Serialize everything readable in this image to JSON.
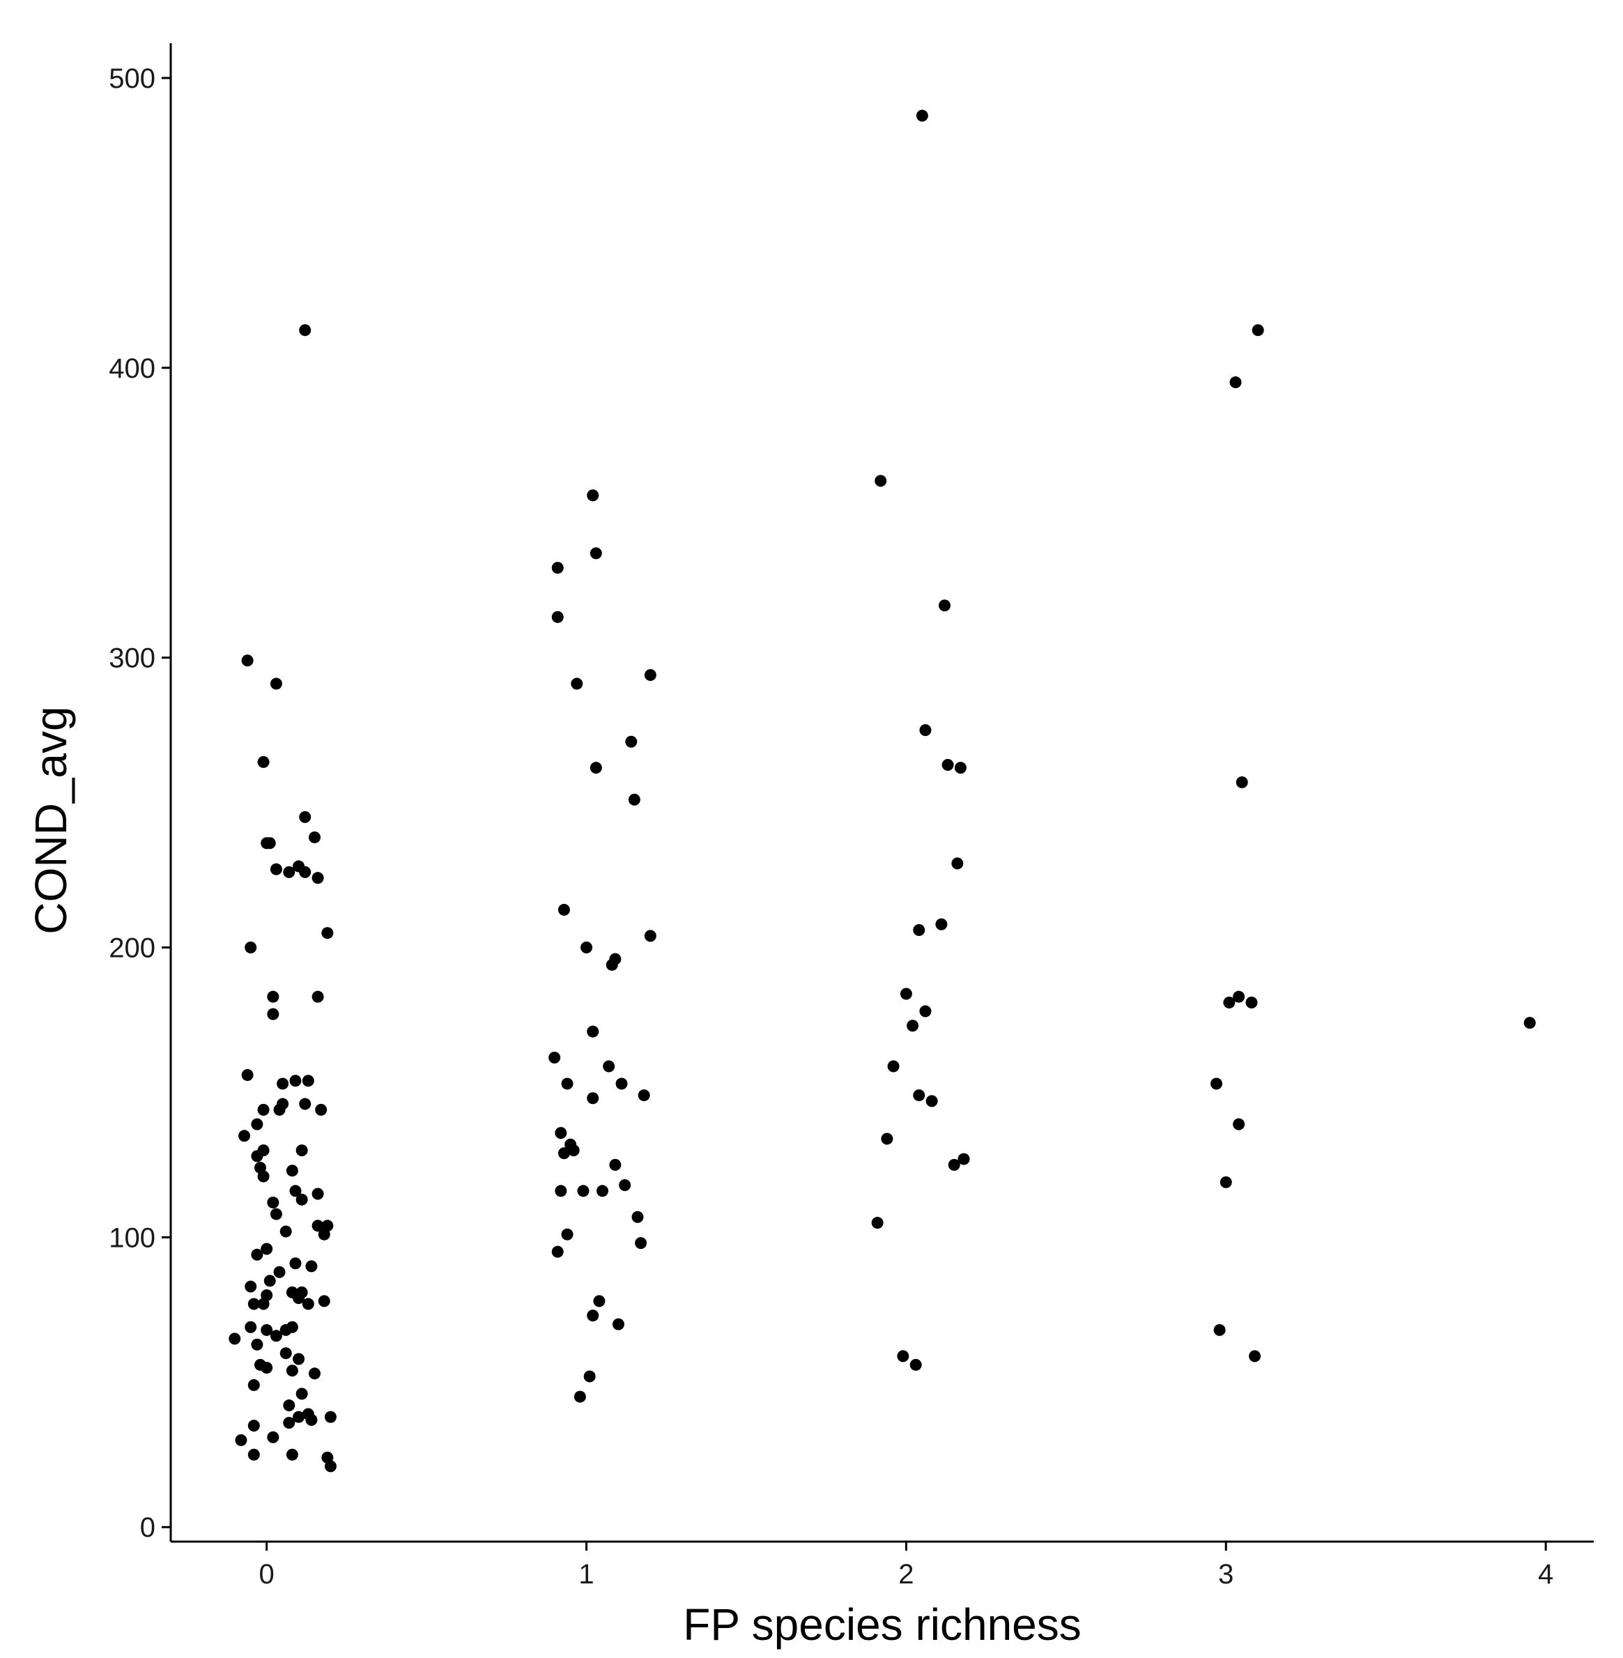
{
  "chart_data": {
    "type": "scatter",
    "title": "",
    "xlabel": "FP species richness",
    "ylabel": "COND_avg",
    "xlim": [
      -0.3,
      4.15
    ],
    "ylim": [
      -5,
      512
    ],
    "xticks": [
      0,
      1,
      2,
      3,
      4
    ],
    "yticks": [
      0,
      100,
      200,
      300,
      400,
      500
    ],
    "xtick_labels": [
      "0",
      "1",
      "2",
      "3",
      "4"
    ],
    "ytick_labels": [
      "0",
      "100",
      "200",
      "300",
      "400",
      "500"
    ],
    "grid": false,
    "legend": "none",
    "colors": {
      "point": "#000000",
      "axis": "#000000"
    },
    "series": [
      {
        "points": [
          [
            -0.1,
            65
          ],
          [
            -0.08,
            30
          ],
          [
            -0.07,
            135
          ],
          [
            -0.06,
            299
          ],
          [
            -0.06,
            156
          ],
          [
            -0.05,
            83
          ],
          [
            -0.05,
            69
          ],
          [
            -0.05,
            200
          ],
          [
            -0.04,
            77
          ],
          [
            -0.04,
            49
          ],
          [
            -0.04,
            35
          ],
          [
            -0.04,
            25
          ],
          [
            -0.03,
            128
          ],
          [
            -0.03,
            94
          ],
          [
            -0.03,
            63
          ],
          [
            -0.03,
            139
          ],
          [
            -0.02,
            124
          ],
          [
            -0.02,
            56
          ],
          [
            -0.01,
            264
          ],
          [
            -0.01,
            130
          ],
          [
            -0.01,
            144
          ],
          [
            -0.01,
            121
          ],
          [
            -0.01,
            77
          ],
          [
            0.0,
            236
          ],
          [
            0.0,
            96
          ],
          [
            0.0,
            80
          ],
          [
            0.0,
            68
          ],
          [
            0.0,
            55
          ],
          [
            0.01,
            85
          ],
          [
            0.01,
            236
          ],
          [
            0.02,
            183
          ],
          [
            0.02,
            177
          ],
          [
            0.02,
            112
          ],
          [
            0.02,
            31
          ],
          [
            0.03,
            291
          ],
          [
            0.03,
            227
          ],
          [
            0.03,
            108
          ],
          [
            0.03,
            66
          ],
          [
            0.04,
            144
          ],
          [
            0.04,
            88
          ],
          [
            0.05,
            146
          ],
          [
            0.05,
            153
          ],
          [
            0.06,
            102
          ],
          [
            0.06,
            68
          ],
          [
            0.06,
            60
          ],
          [
            0.07,
            226
          ],
          [
            0.07,
            42
          ],
          [
            0.07,
            36
          ],
          [
            0.08,
            81
          ],
          [
            0.08,
            123
          ],
          [
            0.08,
            69
          ],
          [
            0.08,
            54
          ],
          [
            0.08,
            25
          ],
          [
            0.09,
            154
          ],
          [
            0.09,
            116
          ],
          [
            0.09,
            91
          ],
          [
            0.1,
            79
          ],
          [
            0.1,
            228
          ],
          [
            0.1,
            58
          ],
          [
            0.1,
            38
          ],
          [
            0.11,
            130
          ],
          [
            0.11,
            113
          ],
          [
            0.11,
            81
          ],
          [
            0.11,
            46
          ],
          [
            0.12,
            413
          ],
          [
            0.12,
            245
          ],
          [
            0.12,
            226
          ],
          [
            0.12,
            146
          ],
          [
            0.13,
            154
          ],
          [
            0.13,
            77
          ],
          [
            0.13,
            39
          ],
          [
            0.14,
            90
          ],
          [
            0.14,
            37
          ],
          [
            0.15,
            238
          ],
          [
            0.15,
            53
          ],
          [
            0.16,
            224
          ],
          [
            0.16,
            183
          ],
          [
            0.16,
            115
          ],
          [
            0.16,
            104
          ],
          [
            0.17,
            144
          ],
          [
            0.18,
            101
          ],
          [
            0.18,
            78
          ],
          [
            0.19,
            205
          ],
          [
            0.19,
            104
          ],
          [
            0.19,
            24
          ],
          [
            0.2,
            38
          ],
          [
            0.2,
            21
          ],
          [
            0.9,
            162
          ],
          [
            0.91,
            331
          ],
          [
            0.91,
            314
          ],
          [
            0.91,
            95
          ],
          [
            0.92,
            136
          ],
          [
            0.92,
            116
          ],
          [
            0.93,
            213
          ],
          [
            0.93,
            129
          ],
          [
            0.94,
            153
          ],
          [
            0.94,
            101
          ],
          [
            0.95,
            132
          ],
          [
            0.96,
            130
          ],
          [
            0.97,
            291
          ],
          [
            0.98,
            45
          ],
          [
            0.99,
            116
          ],
          [
            1.0,
            200
          ],
          [
            1.01,
            52
          ],
          [
            1.02,
            356
          ],
          [
            1.02,
            171
          ],
          [
            1.02,
            148
          ],
          [
            1.02,
            73
          ],
          [
            1.03,
            336
          ],
          [
            1.03,
            262
          ],
          [
            1.04,
            78
          ],
          [
            1.05,
            116
          ],
          [
            1.07,
            159
          ],
          [
            1.08,
            194
          ],
          [
            1.09,
            196
          ],
          [
            1.09,
            125
          ],
          [
            1.1,
            70
          ],
          [
            1.11,
            153
          ],
          [
            1.12,
            118
          ],
          [
            1.14,
            271
          ],
          [
            1.15,
            251
          ],
          [
            1.16,
            107
          ],
          [
            1.17,
            98
          ],
          [
            1.18,
            149
          ],
          [
            1.2,
            204
          ],
          [
            1.2,
            294
          ],
          [
            1.91,
            105
          ],
          [
            1.92,
            361
          ],
          [
            1.94,
            134
          ],
          [
            1.96,
            159
          ],
          [
            1.99,
            59
          ],
          [
            2.0,
            184
          ],
          [
            2.02,
            173
          ],
          [
            2.03,
            56
          ],
          [
            2.04,
            206
          ],
          [
            2.04,
            149
          ],
          [
            2.05,
            487
          ],
          [
            2.06,
            275
          ],
          [
            2.06,
            178
          ],
          [
            2.08,
            147
          ],
          [
            2.11,
            208
          ],
          [
            2.12,
            318
          ],
          [
            2.13,
            263
          ],
          [
            2.15,
            125
          ],
          [
            2.16,
            229
          ],
          [
            2.17,
            262
          ],
          [
            2.18,
            127
          ],
          [
            2.97,
            153
          ],
          [
            2.98,
            68
          ],
          [
            3.0,
            119
          ],
          [
            3.01,
            181
          ],
          [
            3.03,
            395
          ],
          [
            3.04,
            183
          ],
          [
            3.04,
            139
          ],
          [
            3.05,
            257
          ],
          [
            3.08,
            181
          ],
          [
            3.09,
            59
          ],
          [
            3.1,
            413
          ],
          [
            3.95,
            174
          ]
        ]
      }
    ]
  }
}
